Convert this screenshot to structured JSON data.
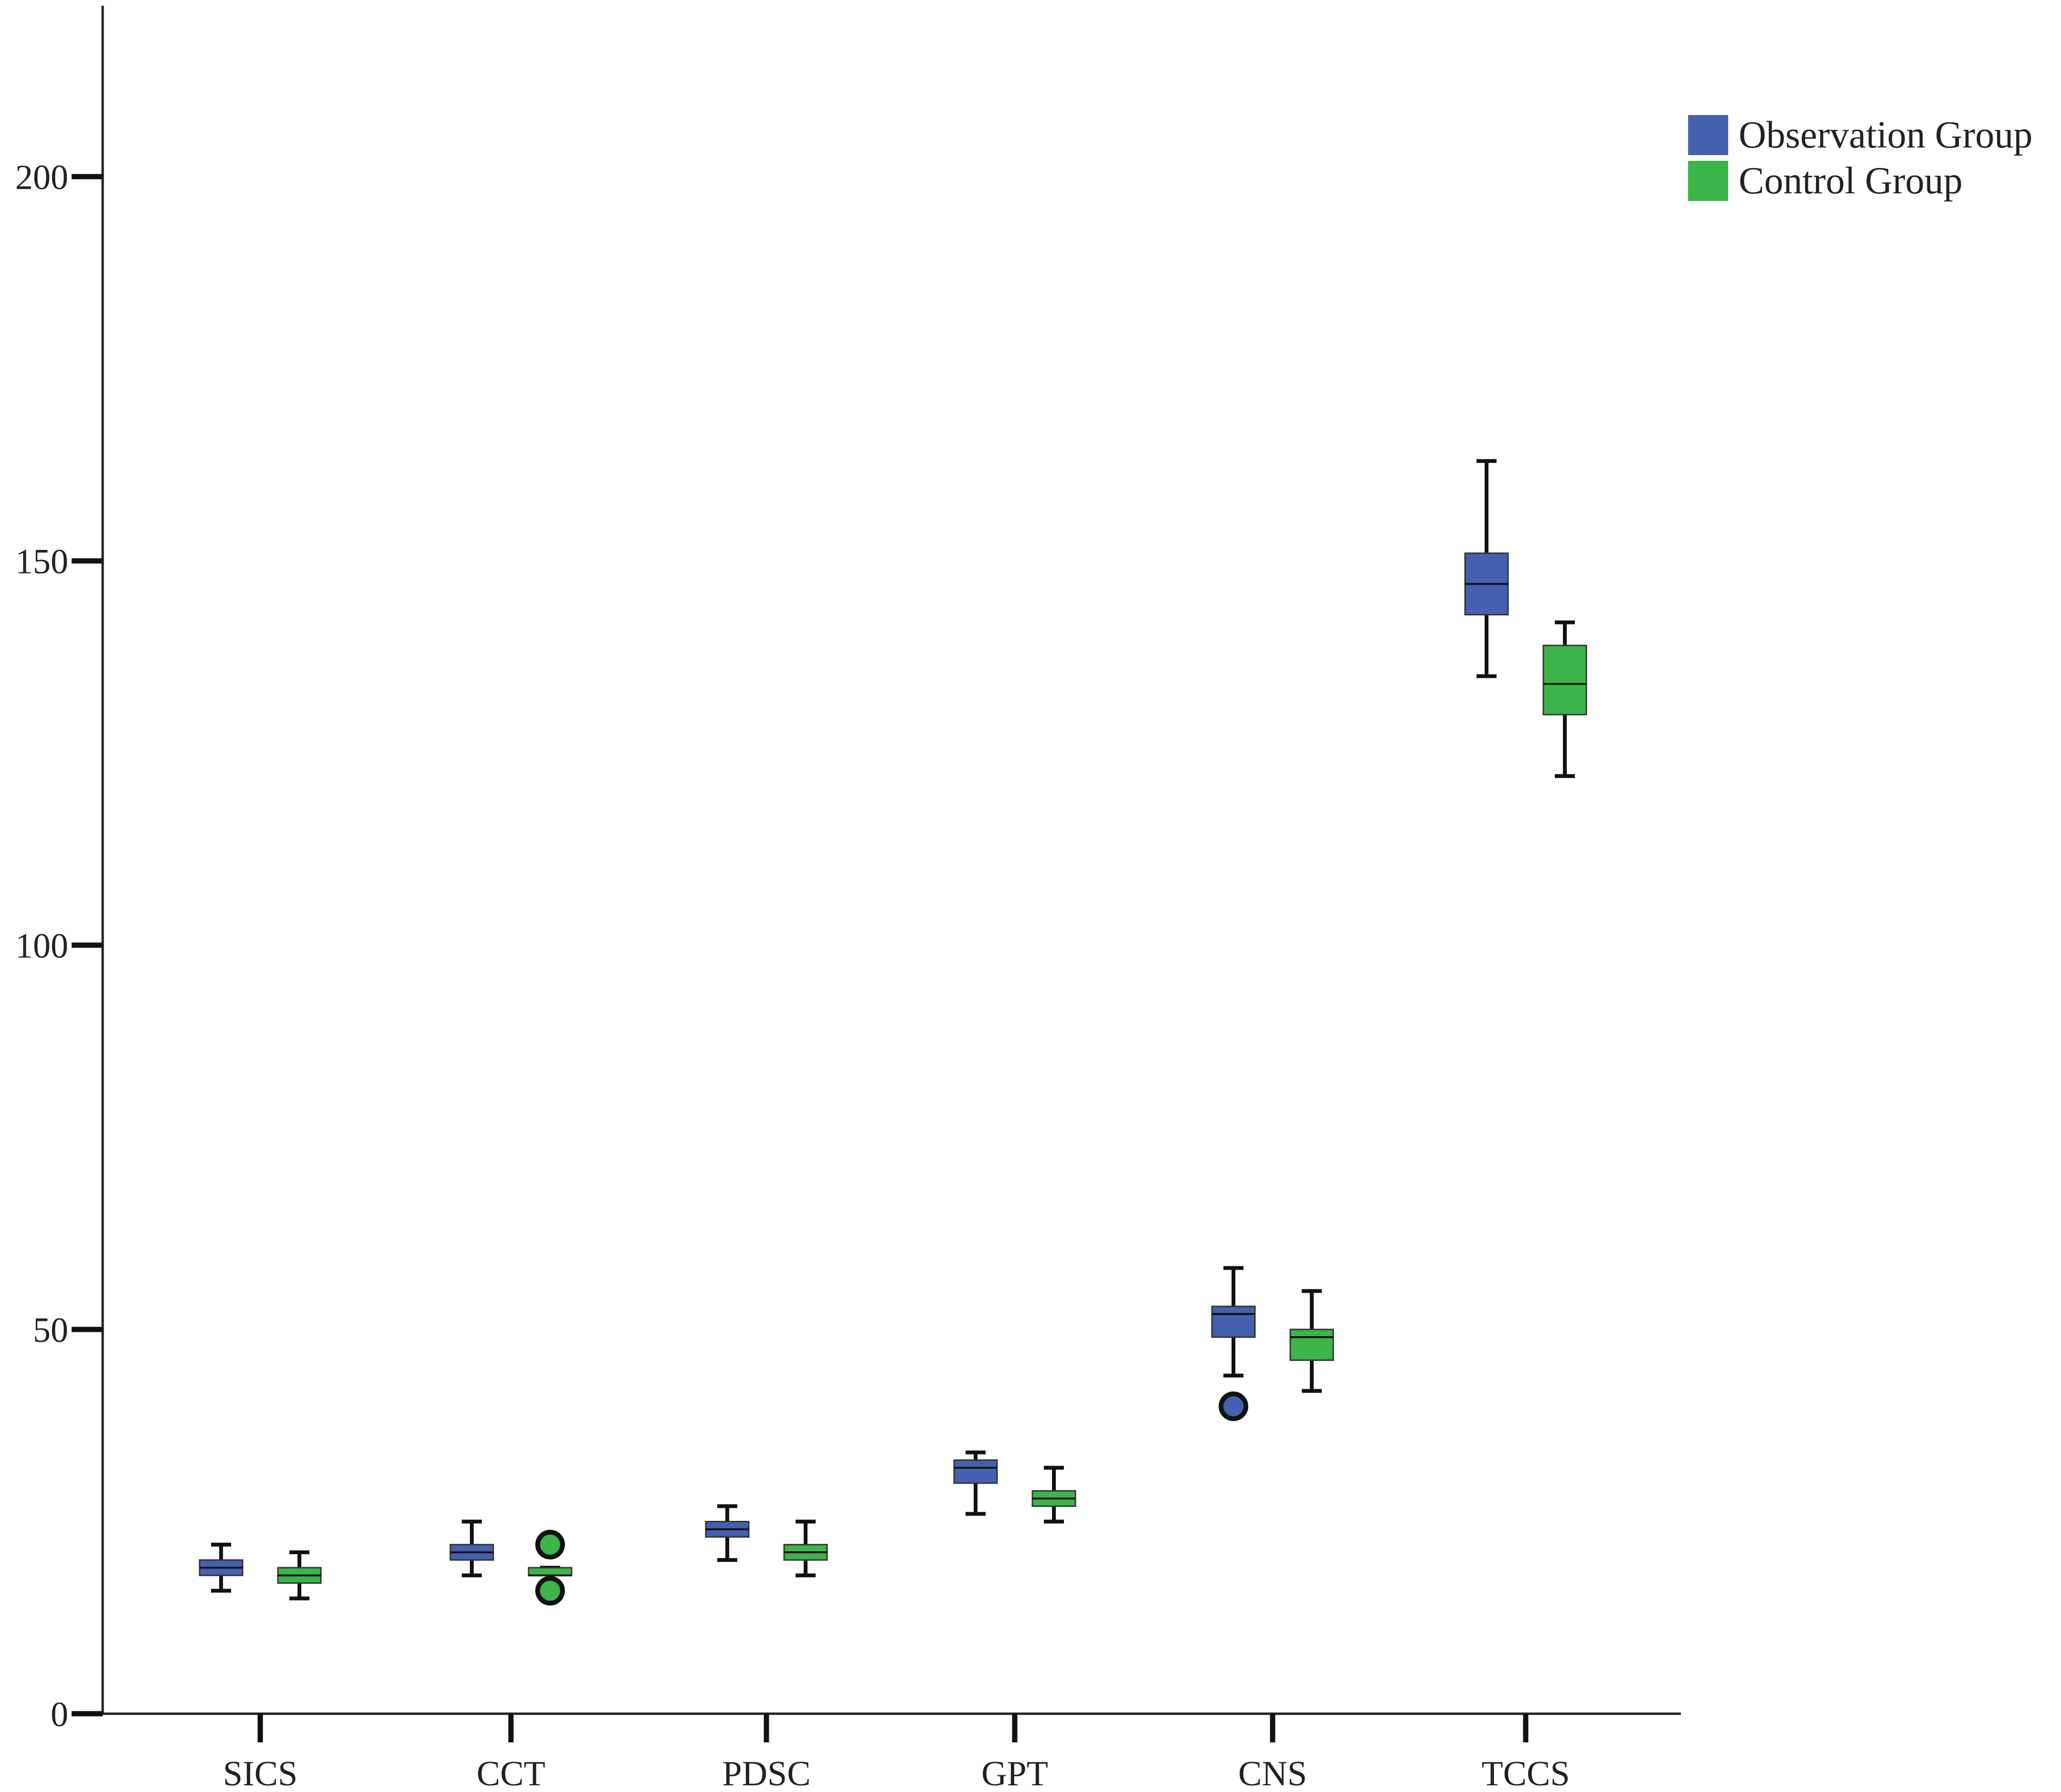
{
  "chart_data": {
    "type": "box",
    "title": "",
    "xlabel": "",
    "ylabel": "",
    "ylim": [
      0,
      220
    ],
    "yticks": [
      0,
      50,
      100,
      150,
      200
    ],
    "categories": [
      "SICS",
      "CCT",
      "PDSC",
      "GPT",
      "CNS",
      "TCCS"
    ],
    "grid": false,
    "legend_position": "top-right",
    "series": [
      {
        "name": "Observation Group",
        "color": "#4461b0",
        "boxes": [
          {
            "min": 16,
            "q1": 18,
            "median": 19,
            "q3": 20,
            "max": 22,
            "outliers": []
          },
          {
            "min": 18,
            "q1": 20,
            "median": 21,
            "q3": 22,
            "max": 25,
            "outliers": []
          },
          {
            "min": 20,
            "q1": 23,
            "median": 24,
            "q3": 25,
            "max": 27,
            "outliers": []
          },
          {
            "min": 26,
            "q1": 30,
            "median": 32,
            "q3": 33,
            "max": 34,
            "outliers": []
          },
          {
            "min": 44,
            "q1": 49,
            "median": 52,
            "q3": 53,
            "max": 58,
            "outliers": [
              40
            ]
          },
          {
            "min": 135,
            "q1": 143,
            "median": 147,
            "q3": 151,
            "max": 163,
            "outliers": []
          }
        ]
      },
      {
        "name": "Control Group",
        "color": "#3cb54a",
        "boxes": [
          {
            "min": 15,
            "q1": 17,
            "median": 18,
            "q3": 19,
            "max": 21,
            "outliers": []
          },
          {
            "min": 17,
            "q1": 18,
            "median": 18,
            "q3": 19,
            "max": 19,
            "outliers": [
              22,
              16
            ]
          },
          {
            "min": 18,
            "q1": 20,
            "median": 21,
            "q3": 22,
            "max": 25,
            "outliers": []
          },
          {
            "min": 25,
            "q1": 27,
            "median": 28,
            "q3": 29,
            "max": 32,
            "outliers": []
          },
          {
            "min": 42,
            "q1": 46,
            "median": 49,
            "q3": 50,
            "max": 55,
            "outliers": []
          },
          {
            "min": 122,
            "q1": 130,
            "median": 134,
            "q3": 139,
            "max": 142,
            "outliers": []
          }
        ]
      }
    ]
  }
}
